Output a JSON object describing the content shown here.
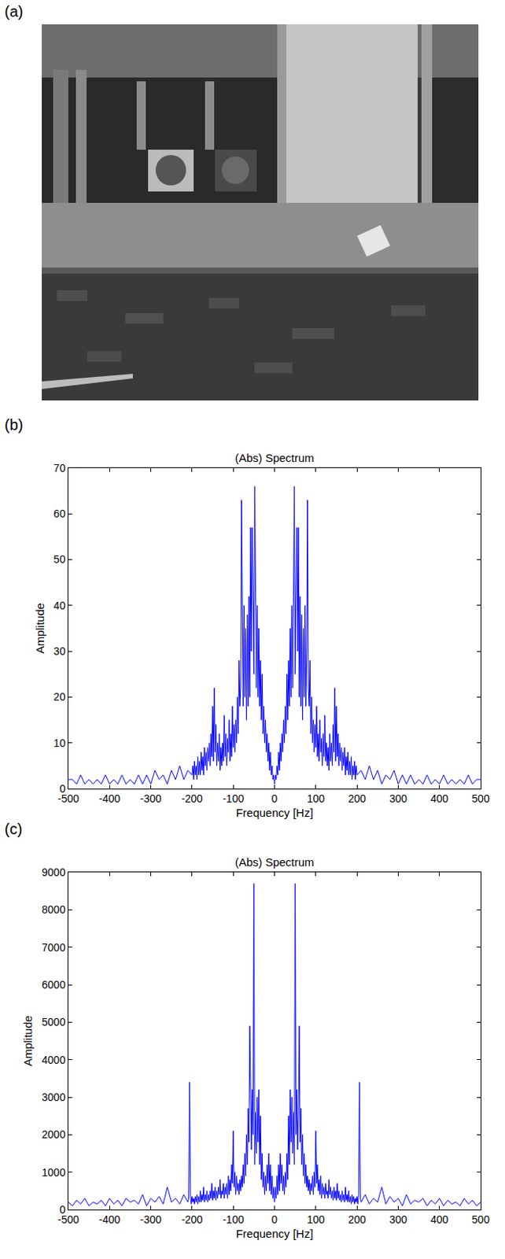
{
  "image": {
    "label": "(a)"
  },
  "chart_data": [
    {
      "panel_label": "(b)",
      "type": "line",
      "title": "(Abs) Spectrum",
      "x_label": "Frequency [Hz]",
      "y_label": "Amplitude",
      "color": "#0000ff",
      "grid": false,
      "x": [
        -500,
        -490,
        -480,
        -470,
        -460,
        -450,
        -440,
        -430,
        -420,
        -410,
        -400,
        -390,
        -380,
        -370,
        -360,
        -350,
        -340,
        -330,
        -320,
        -310,
        -300,
        -290,
        -280,
        -270,
        -260,
        -250,
        -240,
        -230,
        -220,
        -210,
        -200,
        -198,
        -196,
        -194,
        -192,
        -190,
        -188,
        -186,
        -184,
        -182,
        -180,
        -178,
        -176,
        -174,
        -172,
        -170,
        -168,
        -166,
        -164,
        -162,
        -160,
        -158,
        -156,
        -154,
        -152,
        -150,
        -148,
        -146,
        -144,
        -142,
        -140,
        -138,
        -136,
        -134,
        -132,
        -130,
        -128,
        -126,
        -124,
        -122,
        -120,
        -118,
        -116,
        -114,
        -112,
        -110,
        -108,
        -106,
        -104,
        -102,
        -100,
        -98,
        -96,
        -94,
        -92,
        -90,
        -88,
        -86,
        -84,
        -82,
        -80,
        -78,
        -76,
        -74,
        -72,
        -70,
        -68,
        -66,
        -64,
        -62,
        -60,
        -58,
        -56,
        -54,
        -52,
        -50,
        -48,
        -46,
        -44,
        -42,
        -40,
        -38,
        -36,
        -34,
        -32,
        -30,
        -28,
        -26,
        -24,
        -22,
        -20,
        -18,
        -16,
        -14,
        -12,
        -10,
        -8,
        -6,
        -4,
        -2,
        0,
        2,
        4,
        6,
        8,
        10,
        12,
        14,
        16,
        18,
        20,
        22,
        24,
        26,
        28,
        30,
        32,
        34,
        36,
        38,
        40,
        42,
        44,
        46,
        48,
        50,
        52,
        54,
        56,
        58,
        60,
        62,
        64,
        66,
        68,
        70,
        72,
        74,
        76,
        78,
        80,
        82,
        84,
        86,
        88,
        90,
        92,
        94,
        96,
        98,
        100,
        102,
        104,
        106,
        108,
        110,
        112,
        114,
        116,
        118,
        120,
        122,
        124,
        126,
        128,
        130,
        132,
        134,
        136,
        138,
        140,
        142,
        144,
        146,
        148,
        150,
        152,
        154,
        156,
        158,
        160,
        162,
        164,
        166,
        168,
        170,
        172,
        174,
        176,
        178,
        180,
        182,
        184,
        186,
        188,
        190,
        192,
        194,
        196,
        198,
        200,
        210,
        220,
        230,
        240,
        250,
        260,
        270,
        280,
        290,
        300,
        310,
        320,
        330,
        340,
        350,
        360,
        370,
        380,
        390,
        400,
        410,
        420,
        430,
        440,
        450,
        460,
        470,
        480,
        490,
        500
      ],
      "values": [
        2,
        2,
        1,
        3,
        1,
        2,
        1,
        2,
        1,
        3,
        1,
        2,
        1,
        3,
        1,
        2,
        1,
        3,
        1,
        3,
        1,
        4,
        2,
        3,
        1,
        4,
        2,
        5,
        2,
        4,
        3,
        5,
        2,
        6,
        3,
        5,
        2,
        7,
        3,
        6,
        3,
        8,
        4,
        7,
        3,
        9,
        5,
        8,
        4,
        9,
        6,
        10,
        5,
        12,
        7,
        18,
        6,
        22,
        8,
        14,
        5,
        10,
        6,
        12,
        4,
        9,
        5,
        10,
        6,
        16,
        7,
        12,
        5,
        11,
        8,
        15,
        6,
        12,
        7,
        18,
        9,
        14,
        8,
        15,
        10,
        20,
        12,
        28,
        18,
        22,
        63,
        30,
        18,
        40,
        20,
        35,
        15,
        38,
        18,
        42,
        20,
        57,
        30,
        57,
        45,
        25,
        66,
        42,
        22,
        40,
        20,
        35,
        18,
        28,
        15,
        25,
        12,
        18,
        10,
        15,
        8,
        12,
        6,
        10,
        4,
        8,
        3,
        5,
        2,
        3,
        1,
        3,
        2,
        5,
        3,
        8,
        4,
        10,
        6,
        12,
        8,
        15,
        10,
        18,
        12,
        25,
        15,
        28,
        18,
        35,
        20,
        40,
        22,
        42,
        66,
        25,
        45,
        57,
        30,
        57,
        20,
        42,
        18,
        38,
        15,
        35,
        20,
        40,
        18,
        30,
        63,
        22,
        18,
        28,
        12,
        20,
        10,
        15,
        8,
        14,
        9,
        18,
        7,
        12,
        6,
        15,
        8,
        11,
        5,
        12,
        7,
        16,
        6,
        10,
        5,
        9,
        4,
        12,
        6,
        10,
        5,
        14,
        8,
        22,
        6,
        18,
        7,
        12,
        5,
        10,
        6,
        9,
        4,
        8,
        5,
        9,
        3,
        7,
        4,
        8,
        3,
        6,
        3,
        7,
        2,
        5,
        3,
        6,
        2,
        5,
        3,
        4,
        2,
        5,
        2,
        4,
        1,
        3,
        2,
        4,
        1,
        3,
        1,
        3,
        1,
        2,
        1,
        3,
        1,
        2,
        1,
        3,
        1,
        2,
        1,
        2,
        1,
        3,
        1,
        2,
        2
      ],
      "xlim": [
        -500,
        500
      ],
      "xticks": [
        -500,
        -400,
        -300,
        -200,
        -100,
        0,
        100,
        200,
        300,
        400,
        500
      ],
      "ylim": [
        0,
        70
      ],
      "yticks": [
        0,
        10,
        20,
        30,
        40,
        50,
        60,
        70
      ]
    },
    {
      "panel_label": "(c)",
      "type": "line",
      "title": "(Abs) Spectrum",
      "x_label": "Frequency [Hz]",
      "y_label": "Amplitude",
      "color": "#0000ff",
      "grid": false,
      "x": [
        -500,
        -490,
        -480,
        -470,
        -460,
        -450,
        -440,
        -430,
        -420,
        -410,
        -400,
        -390,
        -380,
        -370,
        -360,
        -350,
        -340,
        -330,
        -320,
        -310,
        -300,
        -290,
        -280,
        -270,
        -260,
        -250,
        -240,
        -230,
        -220,
        -210,
        -208,
        -206,
        -204,
        -202,
        -200,
        -198,
        -196,
        -194,
        -192,
        -190,
        -188,
        -186,
        -184,
        -182,
        -180,
        -178,
        -176,
        -174,
        -172,
        -170,
        -168,
        -166,
        -164,
        -162,
        -160,
        -158,
        -156,
        -154,
        -152,
        -150,
        -148,
        -146,
        -144,
        -142,
        -140,
        -138,
        -136,
        -134,
        -132,
        -130,
        -128,
        -126,
        -124,
        -122,
        -120,
        -118,
        -116,
        -114,
        -112,
        -110,
        -108,
        -106,
        -104,
        -102,
        -100,
        -98,
        -96,
        -94,
        -92,
        -90,
        -88,
        -86,
        -84,
        -82,
        -80,
        -78,
        -76,
        -74,
        -72,
        -70,
        -68,
        -66,
        -64,
        -62,
        -60,
        -58,
        -56,
        -54,
        -52,
        -50,
        -48,
        -46,
        -44,
        -42,
        -40,
        -38,
        -36,
        -34,
        -32,
        -30,
        -28,
        -26,
        -24,
        -22,
        -20,
        -18,
        -16,
        -14,
        -12,
        -10,
        -8,
        -6,
        -4,
        -2,
        0,
        2,
        4,
        6,
        8,
        10,
        12,
        14,
        16,
        18,
        20,
        22,
        24,
        26,
        28,
        30,
        32,
        34,
        36,
        38,
        40,
        42,
        44,
        46,
        48,
        50,
        52,
        54,
        56,
        58,
        60,
        62,
        64,
        66,
        68,
        70,
        72,
        74,
        76,
        78,
        80,
        82,
        84,
        86,
        88,
        90,
        92,
        94,
        96,
        98,
        100,
        102,
        104,
        106,
        108,
        110,
        112,
        114,
        116,
        118,
        120,
        122,
        124,
        126,
        128,
        130,
        132,
        134,
        136,
        138,
        140,
        142,
        144,
        146,
        148,
        150,
        152,
        154,
        156,
        158,
        160,
        162,
        164,
        166,
        168,
        170,
        172,
        174,
        176,
        178,
        180,
        182,
        184,
        186,
        188,
        190,
        192,
        194,
        196,
        198,
        200,
        202,
        204,
        206,
        208,
        210,
        220,
        230,
        240,
        250,
        260,
        270,
        280,
        290,
        300,
        310,
        320,
        330,
        340,
        350,
        360,
        370,
        380,
        390,
        400,
        410,
        420,
        430,
        440,
        450,
        460,
        470,
        480,
        490,
        500
      ],
      "values": [
        200,
        100,
        250,
        150,
        300,
        100,
        200,
        150,
        250,
        100,
        300,
        150,
        250,
        100,
        300,
        200,
        250,
        150,
        400,
        100,
        300,
        200,
        350,
        150,
        600,
        200,
        300,
        150,
        400,
        200,
        300,
        3400,
        400,
        150,
        350,
        200,
        300,
        150,
        350,
        200,
        400,
        150,
        350,
        200,
        500,
        200,
        400,
        250,
        600,
        200,
        400,
        250,
        500,
        200,
        400,
        250,
        500,
        300,
        700,
        250,
        500,
        300,
        600,
        250,
        500,
        300,
        600,
        400,
        800,
        300,
        500,
        400,
        700,
        300,
        600,
        400,
        700,
        300,
        900,
        400,
        800,
        500,
        1200,
        700,
        2100,
        600,
        1000,
        400,
        900,
        500,
        700,
        400,
        800,
        500,
        900,
        600,
        1200,
        700,
        1500,
        900,
        2000,
        1200,
        2700,
        1800,
        4900,
        2500,
        1600,
        3200,
        2000,
        8700,
        1200,
        2600,
        1500,
        3000,
        1800,
        3200,
        1200,
        2500,
        800,
        1500,
        600,
        1000,
        400,
        900,
        500,
        1200,
        700,
        1500,
        500,
        1200,
        400,
        900,
        300,
        600,
        200,
        600,
        300,
        900,
        400,
        1200,
        500,
        1500,
        700,
        1200,
        500,
        900,
        400,
        1000,
        600,
        1500,
        800,
        2500,
        1200,
        3200,
        1800,
        3000,
        1500,
        2600,
        1200,
        8700,
        2000,
        3200,
        1600,
        2500,
        4900,
        1800,
        2700,
        1200,
        2000,
        900,
        1500,
        700,
        1200,
        600,
        900,
        500,
        800,
        400,
        700,
        500,
        900,
        400,
        1000,
        600,
        2100,
        700,
        1200,
        500,
        800,
        400,
        900,
        300,
        700,
        400,
        600,
        300,
        700,
        400,
        500,
        300,
        800,
        400,
        600,
        300,
        500,
        250,
        600,
        300,
        500,
        250,
        700,
        300,
        500,
        250,
        400,
        200,
        500,
        250,
        400,
        200,
        600,
        250,
        400,
        200,
        500,
        200,
        350,
        150,
        400,
        200,
        350,
        150,
        300,
        200,
        350,
        150,
        400,
        3400,
        300,
        200,
        400,
        150,
        300,
        200,
        600,
        150,
        350,
        200,
        300,
        100,
        400,
        150,
        250,
        200,
        300,
        100,
        250,
        150,
        300,
        100,
        250,
        150,
        200,
        100,
        300,
        150,
        250,
        100,
        200
      ],
      "xlim": [
        -500,
        500
      ],
      "xticks": [
        -500,
        -400,
        -300,
        -200,
        -100,
        0,
        100,
        200,
        300,
        400,
        500
      ],
      "ylim": [
        0,
        9000
      ],
      "yticks": [
        0,
        1000,
        2000,
        3000,
        4000,
        5000,
        6000,
        7000,
        8000,
        9000
      ]
    }
  ]
}
